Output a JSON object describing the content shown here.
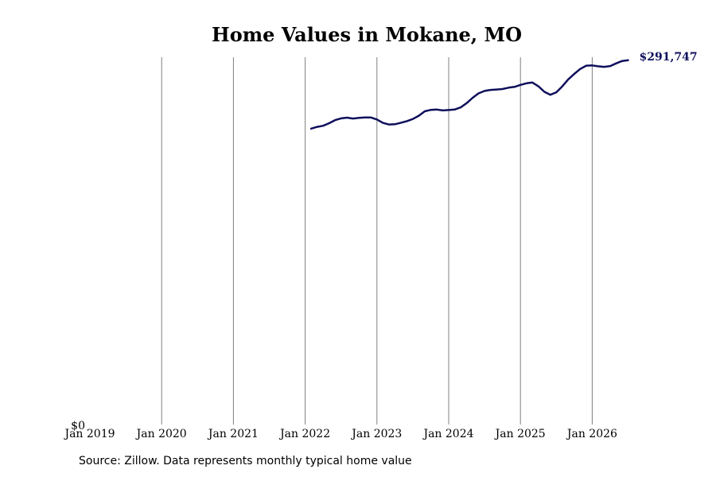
{
  "colors": {
    "line": "#0f0f5c",
    "grid": "#808080"
  },
  "chart_data": {
    "type": "line",
    "title": "Home Values in Mokane, MO",
    "xlabel": "",
    "ylabel": "",
    "grid": "vertical",
    "x_ticks": [
      "Jan 2019",
      "Jan 2020",
      "Jan 2021",
      "Jan 2022",
      "Jan 2023",
      "Jan 2024",
      "Jan 2025",
      "Jan 2026"
    ],
    "y_tick_label": "$0",
    "ylim": [
      0,
      298000
    ],
    "end_label": "$291,747",
    "series": [
      {
        "x": [
          "2022-02",
          "2022-03",
          "2022-04",
          "2022-05",
          "2022-06",
          "2022-07",
          "2022-08",
          "2022-09",
          "2022-10",
          "2022-11",
          "2022-12",
          "2023-01",
          "2023-02",
          "2023-03",
          "2023-04",
          "2023-05",
          "2023-06",
          "2023-07",
          "2023-08",
          "2023-09",
          "2023-10",
          "2023-11",
          "2023-12",
          "2024-01",
          "2024-02",
          "2024-03",
          "2024-04",
          "2024-05",
          "2024-06",
          "2024-07",
          "2024-08",
          "2024-09",
          "2024-10",
          "2024-11",
          "2024-12",
          "2025-01",
          "2025-02",
          "2025-03",
          "2025-04",
          "2025-05",
          "2025-06",
          "2025-07",
          "2025-08",
          "2025-09",
          "2025-10",
          "2025-11",
          "2025-12",
          "2026-01",
          "2026-02",
          "2026-03",
          "2026-04",
          "2026-05",
          "2026-06",
          "2026-07"
        ],
        "y": [
          237000,
          238400,
          239300,
          241300,
          243800,
          245200,
          245800,
          245100,
          245600,
          245900,
          245900,
          244300,
          241600,
          240300,
          240500,
          241700,
          243000,
          244700,
          247300,
          250900,
          252000,
          252300,
          251600,
          251900,
          252300,
          254000,
          257400,
          261700,
          265300,
          267200,
          268000,
          268300,
          268700,
          269800,
          270400,
          272000,
          273300,
          273900,
          270900,
          266500,
          264100,
          266100,
          270900,
          276500,
          280900,
          284800,
          287400,
          287600,
          286900,
          286500,
          287100,
          289300,
          291200,
          291747
        ]
      }
    ]
  },
  "source": "Source: Zillow. Data represents monthly typical home value"
}
